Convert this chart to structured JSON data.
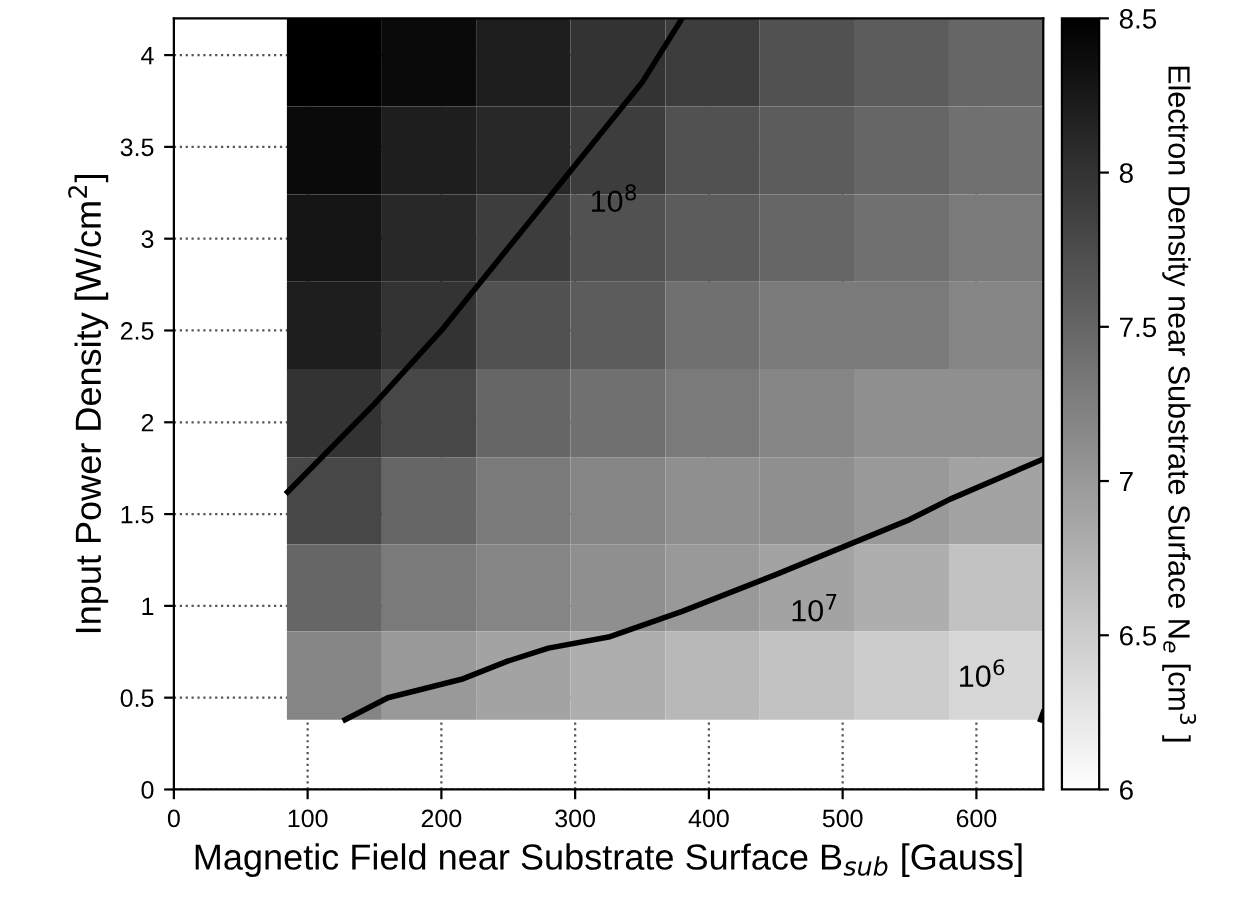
{
  "chart_data": {
    "type": "heatmap",
    "xlabel": "Magnetic Field near Substrate Surface B$_{sub}$ [Gauss]",
    "ylabel": "Input Power Density [W/cm$^{2}$]",
    "clabel": "Electron Density near Substrate Surface N$_{e}$ [cm$^{3}$ ]",
    "x": [
      120,
      191,
      261,
      332,
      403,
      473,
      544,
      615
    ],
    "y": [
      3.96,
      3.48,
      3.0,
      2.53,
      2.05,
      1.57,
      1.1,
      0.62
    ],
    "cells": [
      [
        8.5,
        8.4,
        8.2,
        8.0,
        7.9,
        7.7,
        7.6,
        7.5
      ],
      [
        8.4,
        8.2,
        8.1,
        7.9,
        7.7,
        7.6,
        7.5,
        7.4
      ],
      [
        8.3,
        8.1,
        7.9,
        7.7,
        7.6,
        7.5,
        7.4,
        7.3
      ],
      [
        8.2,
        8.0,
        7.7,
        7.6,
        7.4,
        7.3,
        7.3,
        7.2
      ],
      [
        8.0,
        7.8,
        7.5,
        7.4,
        7.3,
        7.2,
        7.1,
        7.1
      ],
      [
        7.8,
        7.5,
        7.3,
        7.2,
        7.1,
        7.1,
        7.0,
        6.9
      ],
      [
        7.5,
        7.3,
        7.2,
        7.1,
        7.0,
        6.9,
        6.8,
        6.6
      ],
      [
        7.2,
        7.0,
        6.9,
        6.8,
        6.7,
        6.6,
        6.5,
        6.4
      ]
    ],
    "clim": [
      6,
      8.5
    ],
    "cticks": [
      6,
      6.5,
      7,
      7.5,
      8,
      8.5
    ],
    "series": [
      {
        "type": "line",
        "color": "#000000",
        "x": [
          85,
          150,
          200,
          250,
          300,
          350,
          380
        ],
        "values": [
          1.62,
          2.1,
          2.5,
          2.95,
          3.4,
          3.85,
          4.2
        ]
      },
      {
        "type": "line",
        "color": "#000000",
        "x": [
          128,
          160,
          215,
          250,
          280,
          325,
          380,
          450,
          500,
          550,
          580,
          650
        ],
        "values": [
          0.38,
          0.5,
          0.6,
          0.7,
          0.77,
          0.83,
          0.97,
          1.17,
          1.32,
          1.47,
          1.58,
          1.8
        ]
      },
      {
        "type": "line",
        "color": "#000000",
        "x": [
          648,
          650
        ],
        "values": [
          0.38,
          0.42
        ]
      }
    ],
    "annotations": [
      {
        "text": "10$^{8}$",
        "x": 300,
        "y": 3.4
      },
      {
        "text": "10$^{7}$",
        "x": 450,
        "y": 1.17
      },
      {
        "text": "10$^{6}$",
        "x": 650,
        "y": 0.42
      }
    ],
    "xlim": [
      0,
      650
    ],
    "ylim": [
      0,
      4.2
    ],
    "xticks": [
      0,
      100,
      200,
      300,
      400,
      500,
      600
    ],
    "yticks": [
      0,
      0.5,
      1,
      1.5,
      2,
      2.5,
      3,
      3.5,
      4
    ],
    "grid": true
  }
}
